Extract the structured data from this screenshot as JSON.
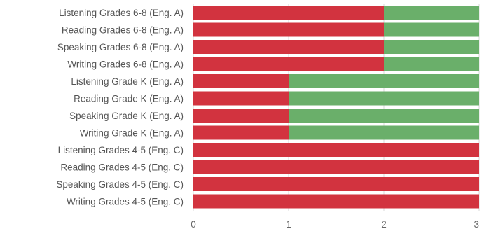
{
  "chart_data": {
    "type": "bar",
    "orientation": "horizontal",
    "stacked": true,
    "categories": [
      "Listening Grades 6-8 (Eng. A)",
      "Reading Grades 6-8 (Eng. A)",
      "Speaking Grades 6-8 (Eng. A)",
      "Writing Grades 6-8 (Eng. A)",
      "Listening Grade K (Eng. A)",
      "Reading Grade K (Eng. A)",
      "Speaking Grade K (Eng. A)",
      "Writing Grade K (Eng. A)",
      "Listening Grades 4-5 (Eng. C)",
      "Reading Grades 4-5 (Eng. C)",
      "Speaking Grades 4-5 (Eng. C)",
      "Writing Grades 4-5 (Eng. C)"
    ],
    "series": [
      {
        "color": "#d2333f",
        "values": [
          2,
          2,
          2,
          2,
          1,
          1,
          1,
          1,
          3,
          3,
          3,
          3
        ]
      },
      {
        "color": "#6aaf6a",
        "values": [
          1,
          1,
          1,
          1,
          2,
          2,
          2,
          2,
          0,
          0,
          0,
          0
        ]
      }
    ],
    "xticks": [
      "0",
      "1",
      "2",
      "3"
    ],
    "xlim": [
      0,
      3
    ],
    "title": "",
    "xlabel": "",
    "ylabel": "",
    "grid": true,
    "legend": "none"
  }
}
